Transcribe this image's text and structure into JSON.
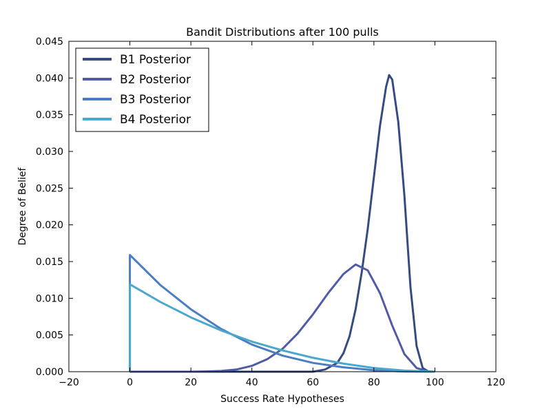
{
  "chart_data": {
    "type": "line",
    "title": "Bandit Distributions after 100 pulls",
    "xlabel": "Success Rate Hypotheses",
    "ylabel": "Degree of Belief",
    "xlim": [
      -20,
      120
    ],
    "ylim": [
      0,
      0.045
    ],
    "xticks": [
      -20,
      0,
      20,
      40,
      60,
      80,
      100,
      120
    ],
    "xtick_labels": [
      "−20",
      "0",
      "20",
      "40",
      "60",
      "80",
      "100",
      "120"
    ],
    "yticks": [
      0,
      0.005,
      0.01,
      0.015,
      0.02,
      0.025,
      0.03,
      0.035,
      0.04,
      0.045
    ],
    "ytick_labels": [
      "0.000",
      "0.005",
      "0.010",
      "0.015",
      "0.020",
      "0.025",
      "0.030",
      "0.035",
      "0.040",
      "0.045"
    ],
    "grid": false,
    "legend_position": "top-left",
    "series": [
      {
        "name": "B1 Posterior",
        "color": "#364b80",
        "x": [
          0,
          60,
          64,
          68,
          70,
          72,
          74,
          76,
          78,
          80,
          82,
          84,
          85,
          86,
          88,
          90,
          92,
          94,
          96,
          98,
          100
        ],
        "y": [
          0,
          0,
          0.0003,
          0.0012,
          0.0025,
          0.0048,
          0.0085,
          0.0135,
          0.0195,
          0.0265,
          0.0335,
          0.0388,
          0.0404,
          0.0398,
          0.034,
          0.024,
          0.0115,
          0.0035,
          0.0005,
          0,
          0
        ]
      },
      {
        "name": "B2 Posterior",
        "color": "#4f5ba6",
        "x": [
          0,
          20,
          25,
          30,
          35,
          40,
          45,
          50,
          55,
          60,
          65,
          70,
          74,
          78,
          82,
          86,
          90,
          94,
          98,
          100
        ],
        "y": [
          0,
          0,
          3e-05,
          0.0001,
          0.0003,
          0.0008,
          0.0017,
          0.0031,
          0.0052,
          0.0078,
          0.0107,
          0.0133,
          0.0146,
          0.0138,
          0.0107,
          0.0063,
          0.0024,
          0.0005,
          3e-05,
          0
        ]
      },
      {
        "name": "B3 Posterior",
        "color": "#4a7dc2",
        "x": [
          0,
          0,
          10,
          20,
          30,
          40,
          50,
          60,
          70,
          80,
          90,
          100
        ],
        "y": [
          0,
          0.0159,
          0.0118,
          0.0085,
          0.0058,
          0.0037,
          0.0022,
          0.0012,
          0.0006,
          0.0002,
          3e-05,
          0
        ]
      },
      {
        "name": "B4 Posterior",
        "color": "#4aa8cf",
        "x": [
          0,
          0,
          10,
          20,
          30,
          40,
          50,
          60,
          70,
          80,
          90,
          100
        ],
        "y": [
          0,
          0.0119,
          0.0095,
          0.0074,
          0.0056,
          0.0041,
          0.0029,
          0.0019,
          0.0011,
          0.0005,
          0.00015,
          0
        ]
      }
    ]
  }
}
